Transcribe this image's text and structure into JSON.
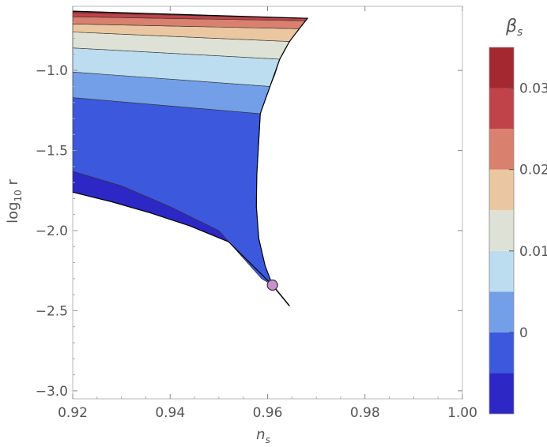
{
  "chart_data": {
    "type": "contour",
    "xlabel": "n_s",
    "ylabel": "log10 r",
    "xlim": [
      0.92,
      1.0
    ],
    "ylim": [
      -3.05,
      -0.6
    ],
    "x_ticks": [
      "0.92",
      "0.94",
      "0.96",
      "0.98",
      "1.00"
    ],
    "y_ticks": [
      "−1.0",
      "−1.5",
      "−2.0",
      "−2.5",
      "−3.0"
    ],
    "grid": false,
    "colorbar": {
      "title": "β_s",
      "ticks": [
        "0",
        "0.01",
        "0.02",
        "0.03"
      ],
      "range": [
        -0.01,
        0.035
      ],
      "levels": [
        {
          "min": -0.01,
          "max": -0.005,
          "color": "#2d27c6"
        },
        {
          "min": -0.005,
          "max": 0.0,
          "color": "#3c58dc"
        },
        {
          "min": 0.0,
          "max": 0.005,
          "color": "#739ee8"
        },
        {
          "min": 0.005,
          "max": 0.01,
          "color": "#bcdcef"
        },
        {
          "min": 0.01,
          "max": 0.015,
          "color": "#dee2d6"
        },
        {
          "min": 0.015,
          "max": 0.02,
          "color": "#eac7a0"
        },
        {
          "min": 0.02,
          "max": 0.025,
          "color": "#d9806e"
        },
        {
          "min": 0.025,
          "max": 0.03,
          "color": "#c0434a"
        },
        {
          "min": 0.03,
          "max": 0.035,
          "color": "#a3282f"
        }
      ]
    },
    "regions": [
      {
        "level": 0,
        "color": "#2d27c6",
        "points": [
          [
            0.92,
            -1.76
          ],
          [
            0.928,
            -1.82
          ],
          [
            0.936,
            -1.89
          ],
          [
            0.944,
            -1.97
          ],
          [
            0.952,
            -2.07
          ],
          [
            0.957,
            -2.17
          ],
          [
            0.961,
            -2.34
          ],
          [
            0.9588,
            -2.3
          ],
          [
            0.9573,
            -2.25
          ],
          [
            0.95,
            -2.0
          ],
          [
            0.94,
            -1.85
          ],
          [
            0.93,
            -1.72
          ],
          [
            0.92,
            -1.63
          ]
        ]
      },
      {
        "level": 1,
        "color": "#3c58dc",
        "points": [
          [
            0.92,
            -1.63
          ],
          [
            0.93,
            -1.72
          ],
          [
            0.94,
            -1.85
          ],
          [
            0.95,
            -2.0
          ],
          [
            0.9573,
            -2.25
          ],
          [
            0.9588,
            -2.3
          ],
          [
            0.961,
            -2.34
          ],
          [
            0.9595,
            -2.22
          ],
          [
            0.9582,
            -2.05
          ],
          [
            0.9577,
            -1.85
          ],
          [
            0.9578,
            -1.65
          ],
          [
            0.9582,
            -1.45
          ],
          [
            0.9585,
            -1.27
          ],
          [
            0.92,
            -1.17
          ]
        ]
      },
      {
        "level": 2,
        "color": "#739ee8",
        "points": [
          [
            0.92,
            -1.17
          ],
          [
            0.9585,
            -1.27
          ],
          [
            0.9595,
            -1.18
          ],
          [
            0.9605,
            -1.1
          ],
          [
            0.92,
            -1.01
          ]
        ]
      },
      {
        "level": 3,
        "color": "#bcdcef",
        "points": [
          [
            0.92,
            -1.01
          ],
          [
            0.9605,
            -1.1
          ],
          [
            0.9615,
            -1.03
          ],
          [
            0.9625,
            -0.93
          ],
          [
            0.92,
            -0.86
          ]
        ]
      },
      {
        "level": 4,
        "color": "#dee2d6",
        "points": [
          [
            0.92,
            -0.86
          ],
          [
            0.9625,
            -0.93
          ],
          [
            0.9635,
            -0.87
          ],
          [
            0.9645,
            -0.82
          ],
          [
            0.92,
            -0.76
          ]
        ]
      },
      {
        "level": 5,
        "color": "#eac7a0",
        "points": [
          [
            0.92,
            -0.76
          ],
          [
            0.9645,
            -0.82
          ],
          [
            0.9655,
            -0.78
          ],
          [
            0.9665,
            -0.74
          ],
          [
            0.92,
            -0.71
          ]
        ]
      },
      {
        "level": 6,
        "color": "#d9806e",
        "points": [
          [
            0.92,
            -0.71
          ],
          [
            0.9665,
            -0.74
          ],
          [
            0.9672,
            -0.712
          ],
          [
            0.9678,
            -0.69
          ],
          [
            0.92,
            -0.665
          ]
        ]
      },
      {
        "level": 7,
        "color": "#c0434a",
        "points": [
          [
            0.92,
            -0.665
          ],
          [
            0.9678,
            -0.69
          ],
          [
            0.9682,
            -0.675
          ],
          [
            0.92,
            -0.64
          ]
        ]
      },
      {
        "level": 8,
        "color": "#a3282f",
        "points": [
          [
            0.92,
            -0.64
          ],
          [
            0.9682,
            -0.675
          ],
          [
            0.92,
            -0.63
          ]
        ]
      }
    ],
    "outline": [
      [
        0.92,
        -0.63
      ],
      [
        0.9682,
        -0.675
      ],
      [
        0.9665,
        -0.74
      ],
      [
        0.9645,
        -0.82
      ],
      [
        0.9625,
        -0.93
      ],
      [
        0.9605,
        -1.1
      ],
      [
        0.9585,
        -1.27
      ],
      [
        0.9578,
        -1.65
      ],
      [
        0.9577,
        -1.85
      ],
      [
        0.9582,
        -2.05
      ],
      [
        0.9595,
        -2.22
      ],
      [
        0.961,
        -2.34
      ],
      [
        0.952,
        -2.07
      ],
      [
        0.944,
        -1.97
      ],
      [
        0.936,
        -1.89
      ],
      [
        0.928,
        -1.82
      ],
      [
        0.92,
        -1.76
      ]
    ],
    "line": [
      [
        0.961,
        -2.34
      ],
      [
        0.9645,
        -2.47
      ]
    ],
    "point": {
      "x": 0.961,
      "y": -2.34,
      "color": "#c890cc"
    }
  }
}
